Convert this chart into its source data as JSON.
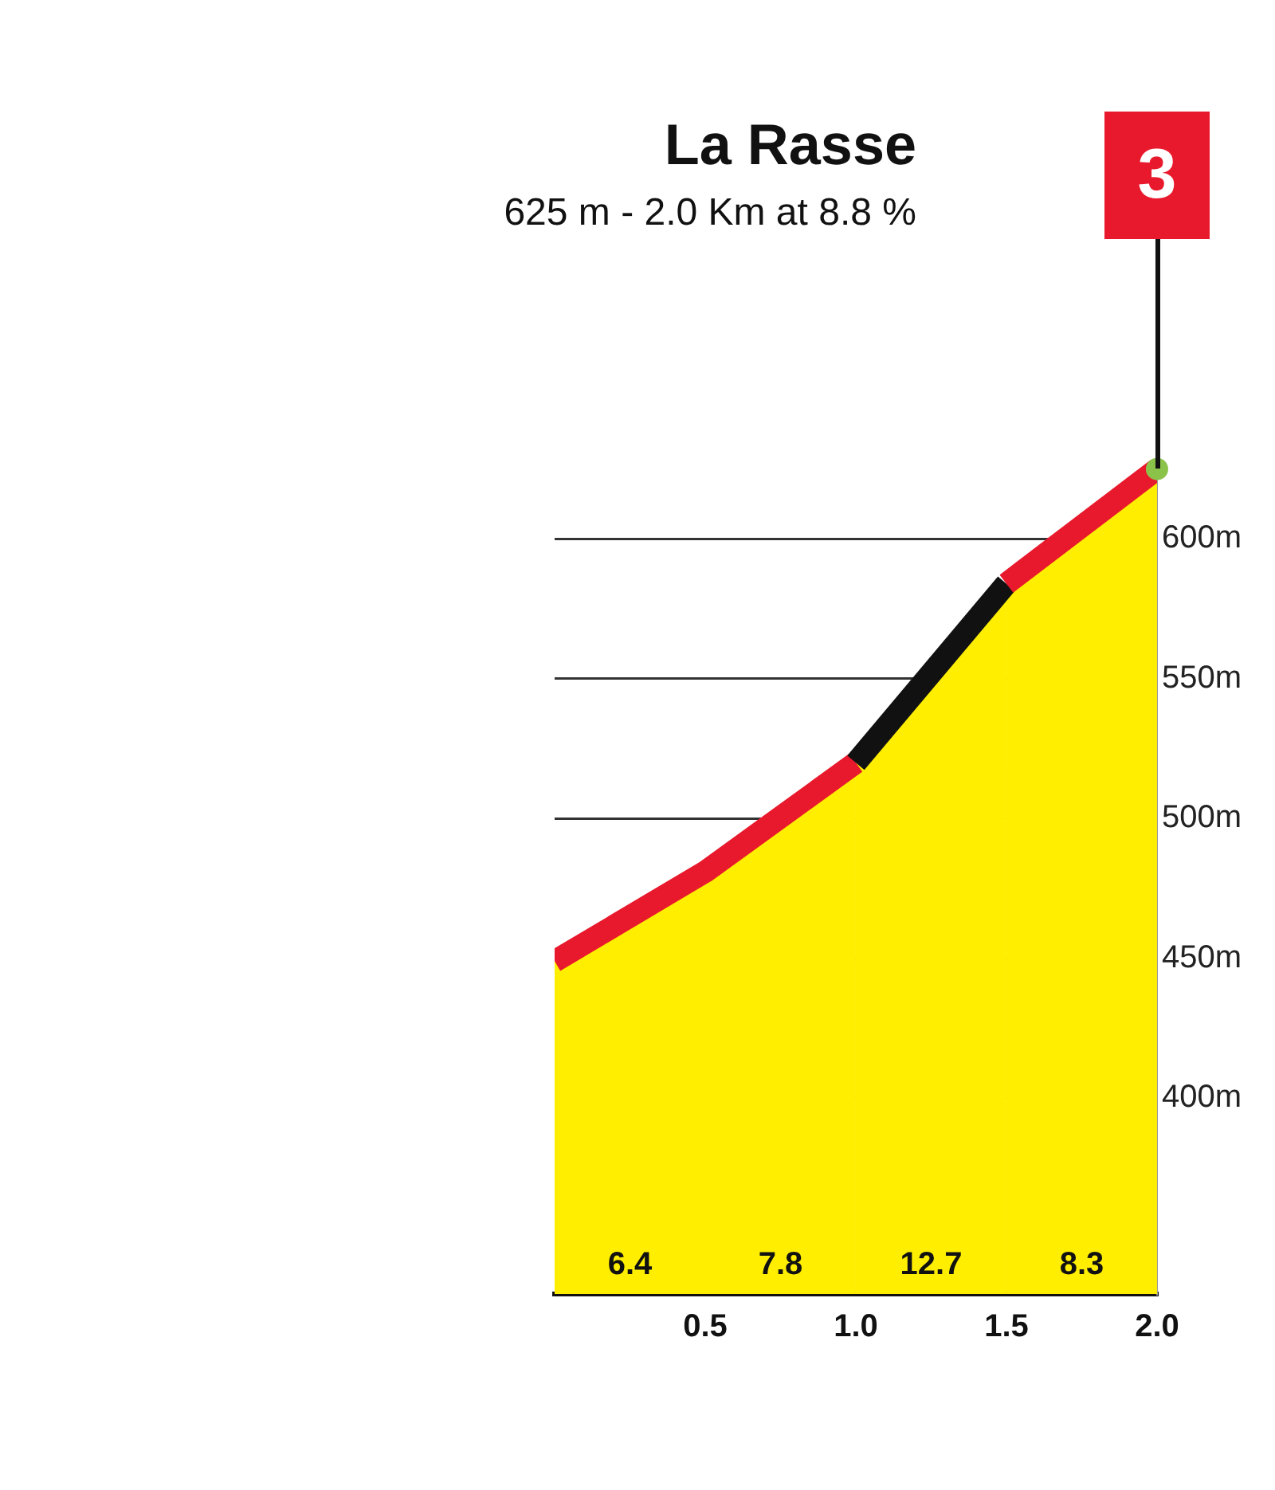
{
  "chart_data": {
    "type": "area",
    "title": "La Rasse",
    "subtitle": "625 m - 2.0 Km at 8.8 %",
    "x": [
      0,
      0.5,
      1.0,
      1.5,
      2.0
    ],
    "series": [
      {
        "color": "#ffee00",
        "colors": [
          "#e8192c",
          "#e8192c",
          "#111111",
          "#e8192c",
          "#8bc34a"
        ],
        "values": [
          449,
          481,
          520,
          584,
          625
        ]
      }
    ],
    "xlim": [
      0,
      2
    ],
    "xticks": [
      {
        "value": 0.5,
        "label": "0.5"
      },
      {
        "value": 1,
        "label": "1.0"
      },
      {
        "value": 1.5,
        "label": "1.5"
      },
      {
        "value": 2,
        "label": "2.0"
      }
    ],
    "ylim": [
      330,
      640
    ],
    "yticks": [
      {
        "value": 400,
        "label": "400m"
      },
      {
        "value": 450,
        "label": "450m"
      },
      {
        "value": 500,
        "label": "500m"
      },
      {
        "value": 550,
        "label": "550m"
      },
      {
        "value": 600,
        "label": "600m"
      }
    ],
    "annotations": [
      "6.4",
      "7.8",
      "12.7",
      "8.3",
      "3"
    ],
    "grid": true,
    "legend": false,
    "marker": "none",
    "line_style": "solid"
  }
}
